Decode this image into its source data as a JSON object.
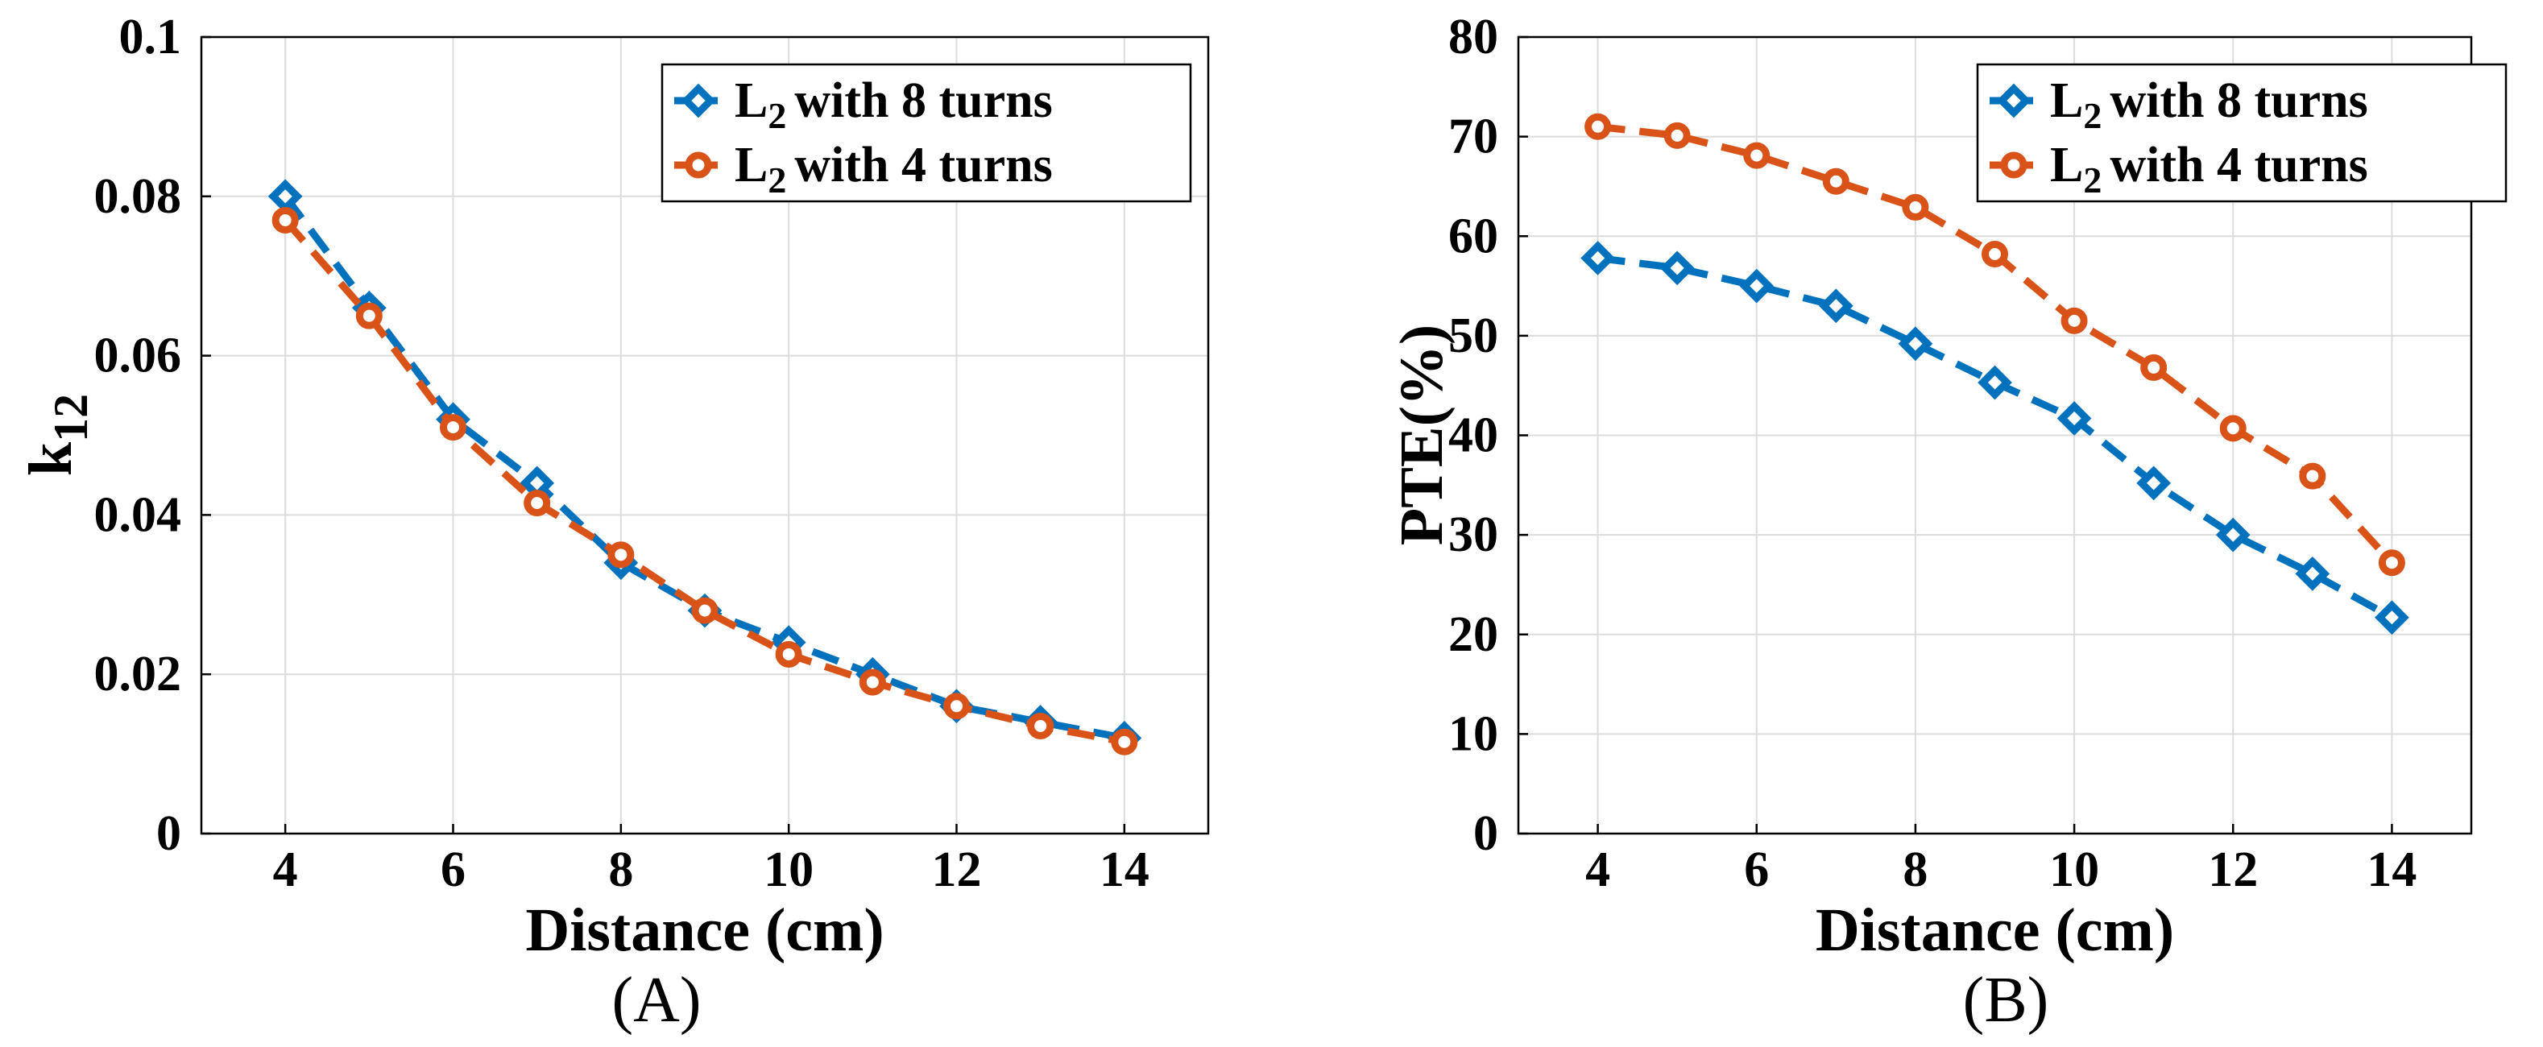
{
  "colors": {
    "series1": "#0072BD",
    "series2": "#D95319"
  },
  "chart_data": [
    {
      "type": "line",
      "panel_label": "(A)",
      "xlabel": "Distance (cm)",
      "ylabel": "k12",
      "ylabel_main": "k",
      "ylabel_sub": "12",
      "xlim": [
        3,
        15
      ],
      "ylim": [
        0,
        0.1
      ],
      "xticks": [
        4,
        6,
        8,
        10,
        12,
        14
      ],
      "yticks": [
        0,
        0.02,
        0.04,
        0.06,
        0.08,
        0.1
      ],
      "ytick_labels": [
        "0",
        "0.02",
        "0.04",
        "0.06",
        "0.08",
        "0.1"
      ],
      "grid": true,
      "legend_position": "top-right",
      "x": [
        4,
        5,
        6,
        7,
        8,
        9,
        10,
        11,
        12,
        13,
        14
      ],
      "series": [
        {
          "name": "L2 with 8 turns",
          "name_main": "L",
          "name_sub": "2",
          "name_rest": "with 8 turns",
          "marker": "diamond",
          "values": [
            0.08,
            0.066,
            0.052,
            0.044,
            0.034,
            0.028,
            0.024,
            0.02,
            0.016,
            0.014,
            0.012
          ]
        },
        {
          "name": "L2 with 4 turns",
          "name_main": "L",
          "name_sub": "2",
          "name_rest": "with 4 turns",
          "marker": "circle",
          "values": [
            0.077,
            0.065,
            0.051,
            0.0415,
            0.035,
            0.028,
            0.0225,
            0.019,
            0.016,
            0.0135,
            0.0115
          ]
        }
      ]
    },
    {
      "type": "line",
      "panel_label": "(B)",
      "xlabel": "Distance (cm)",
      "ylabel": "PTE(%)",
      "xlim": [
        3,
        15
      ],
      "ylim": [
        0,
        80
      ],
      "xticks": [
        4,
        6,
        8,
        10,
        12,
        14
      ],
      "yticks": [
        0,
        10,
        20,
        30,
        40,
        50,
        60,
        70,
        80
      ],
      "ytick_labels": [
        "0",
        "10",
        "20",
        "30",
        "40",
        "50",
        "60",
        "70",
        "80"
      ],
      "grid": true,
      "legend_position": "top-right",
      "x": [
        4,
        5,
        6,
        7,
        8,
        9,
        10,
        11,
        12,
        13,
        14
      ],
      "series": [
        {
          "name": "L2 with 8 turns",
          "name_main": "L",
          "name_sub": "2",
          "name_rest": "with 8 turns",
          "marker": "diamond",
          "values": [
            57.8,
            56.8,
            55.0,
            53.0,
            49.2,
            45.3,
            41.7,
            35.2,
            30.0,
            26.1,
            21.7
          ]
        },
        {
          "name": "L2 with 4 turns",
          "name_main": "L",
          "name_sub": "2",
          "name_rest": "with 4 turns",
          "marker": "circle",
          "values": [
            71.0,
            70.1,
            68.1,
            65.5,
            62.9,
            58.2,
            51.5,
            46.8,
            40.7,
            35.9,
            27.2
          ]
        }
      ]
    }
  ]
}
